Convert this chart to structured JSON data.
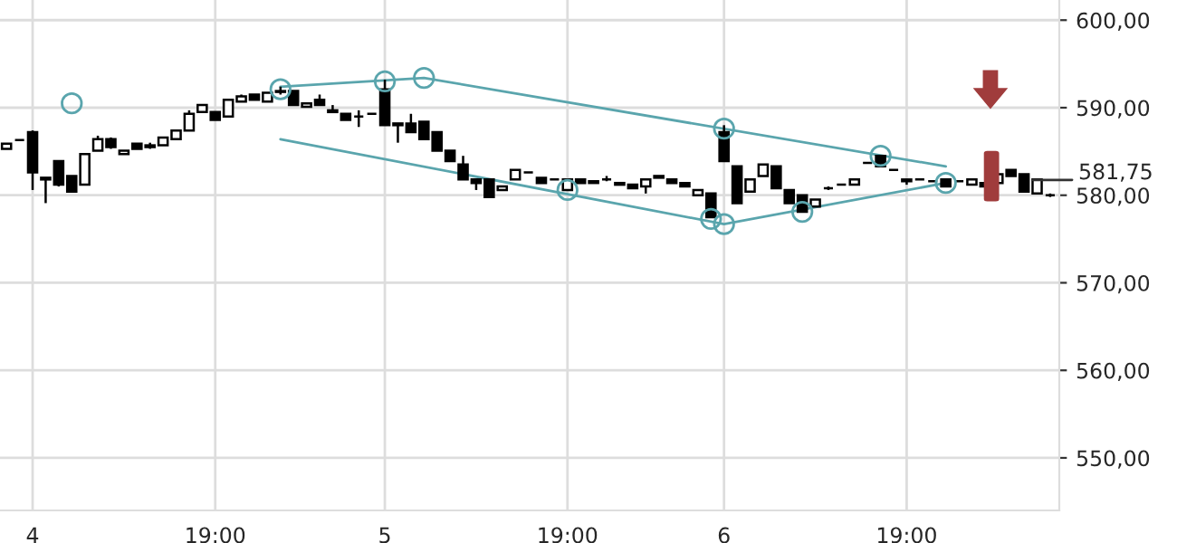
{
  "chart_data": {
    "type": "candlestick",
    "categories": [
      null,
      null,
      "4",
      null,
      null,
      null,
      null,
      null,
      null,
      null,
      null,
      null,
      null,
      null,
      null,
      null,
      "19:00",
      null,
      null,
      null,
      null,
      null,
      null,
      null,
      null,
      null,
      null,
      null,
      null,
      "5",
      null,
      null,
      null,
      null,
      null,
      null,
      null,
      null,
      null,
      null,
      null,
      null,
      null,
      "19:00",
      null,
      null,
      null,
      null,
      null,
      null,
      null,
      null,
      null,
      null,
      null,
      "6",
      null,
      null,
      null,
      null,
      null,
      null,
      null,
      null,
      null,
      null,
      null,
      null,
      null,
      "19:00",
      null,
      null,
      null,
      null,
      null,
      null,
      null,
      null,
      null,
      null,
      null
    ],
    "ohlc": [
      [
        585.3,
        585.9,
        585.3,
        585.9
      ],
      [
        586.3,
        586.3,
        586.3,
        586.3
      ],
      [
        587.2,
        587.4,
        580.6,
        582.6
      ],
      [
        582.0,
        582.0,
        579.1,
        581.8
      ],
      [
        583.9,
        584.0,
        581.0,
        581.2
      ],
      [
        582.2,
        582.2,
        580.4,
        580.4
      ],
      [
        581.2,
        584.7,
        581.2,
        584.7
      ],
      [
        585.1,
        586.8,
        585.1,
        586.4
      ],
      [
        586.4,
        586.6,
        585.3,
        585.5
      ],
      [
        584.7,
        585.1,
        584.7,
        585.1
      ],
      [
        585.9,
        585.9,
        585.3,
        585.3
      ],
      [
        585.7,
        586.0,
        585.3,
        585.5
      ],
      [
        585.7,
        586.6,
        585.7,
        586.6
      ],
      [
        586.4,
        587.4,
        586.4,
        587.4
      ],
      [
        587.4,
        589.7,
        587.4,
        589.3
      ],
      [
        589.5,
        590.3,
        589.5,
        590.3
      ],
      [
        589.5,
        589.5,
        588.6,
        588.6
      ],
      [
        589.0,
        590.9,
        589.0,
        590.9
      ],
      [
        590.7,
        591.5,
        590.7,
        591.3
      ],
      [
        591.5,
        591.5,
        590.9,
        590.9
      ],
      [
        590.7,
        591.7,
        590.7,
        591.7
      ],
      [
        591.9,
        592.4,
        591.5,
        591.8
      ],
      [
        591.9,
        591.9,
        590.3,
        590.3
      ],
      [
        590.1,
        590.5,
        590.1,
        590.5
      ],
      [
        590.9,
        591.5,
        590.3,
        590.3
      ],
      [
        589.7,
        590.3,
        589.5,
        589.5
      ],
      [
        589.3,
        589.3,
        588.6,
        588.6
      ],
      [
        589.0,
        589.7,
        587.8,
        589.0
      ],
      [
        589.3,
        589.3,
        589.3,
        589.3
      ],
      [
        592.1,
        593.2,
        588.0,
        588.0
      ],
      [
        588.2,
        588.2,
        586.0,
        588.0
      ],
      [
        588.2,
        589.3,
        587.2,
        587.2
      ],
      [
        588.4,
        588.4,
        586.4,
        586.4
      ],
      [
        587.2,
        587.2,
        585.1,
        585.1
      ],
      [
        585.1,
        585.1,
        583.9,
        583.9
      ],
      [
        583.5,
        584.5,
        581.8,
        581.8
      ],
      [
        581.8,
        581.8,
        580.6,
        581.4
      ],
      [
        581.8,
        581.8,
        579.8,
        579.8
      ],
      [
        580.6,
        581.0,
        580.6,
        581.0
      ],
      [
        581.8,
        582.9,
        581.8,
        582.9
      ],
      [
        582.6,
        582.6,
        582.6,
        582.6
      ],
      [
        582.0,
        582.0,
        581.4,
        581.4
      ],
      [
        581.8,
        581.8,
        581.8,
        581.8
      ],
      [
        580.6,
        581.8,
        580.6,
        581.8
      ],
      [
        581.8,
        581.8,
        581.4,
        581.4
      ],
      [
        581.6,
        581.6,
        581.4,
        581.4
      ],
      [
        581.8,
        582.2,
        581.6,
        581.8
      ],
      [
        581.4,
        581.4,
        581.2,
        581.2
      ],
      [
        581.2,
        581.2,
        580.8,
        580.8
      ],
      [
        581.0,
        581.8,
        580.2,
        581.8
      ],
      [
        582.0,
        582.2,
        582.0,
        582.2
      ],
      [
        581.8,
        581.8,
        581.4,
        581.4
      ],
      [
        581.4,
        581.4,
        581.0,
        581.0
      ],
      [
        580.0,
        580.6,
        580.0,
        580.6
      ],
      [
        580.2,
        580.2,
        577.5,
        577.5
      ],
      [
        587.2,
        588.0,
        583.9,
        583.9
      ],
      [
        583.3,
        583.3,
        579.1,
        579.1
      ],
      [
        580.4,
        581.8,
        580.4,
        581.8
      ],
      [
        582.2,
        583.5,
        582.2,
        583.5
      ],
      [
        583.3,
        583.3,
        580.8,
        580.8
      ],
      [
        580.6,
        580.6,
        579.1,
        579.1
      ],
      [
        580.0,
        580.0,
        578.1,
        578.1
      ],
      [
        578.7,
        579.5,
        578.7,
        579.5
      ],
      [
        580.8,
        581.0,
        580.6,
        580.8
      ],
      [
        581.2,
        581.2,
        581.2,
        581.2
      ],
      [
        581.2,
        581.8,
        581.2,
        581.8
      ],
      [
        583.7,
        583.7,
        583.7,
        583.7
      ],
      [
        584.5,
        584.5,
        583.3,
        583.3
      ],
      [
        582.9,
        582.9,
        582.9,
        582.9
      ],
      [
        581.8,
        581.8,
        581.2,
        581.6
      ],
      [
        581.8,
        581.8,
        581.8,
        581.8
      ],
      [
        581.6,
        581.6,
        581.6,
        581.6
      ],
      [
        581.8,
        581.8,
        581.0,
        581.0
      ],
      [
        581.6,
        581.6,
        581.6,
        581.6
      ],
      [
        581.2,
        581.8,
        581.2,
        581.8
      ],
      [
        581.4,
        581.4,
        581.0,
        581.0
      ],
      [
        581.4,
        582.4,
        581.4,
        582.4
      ],
      [
        582.9,
        582.9,
        582.2,
        582.2
      ],
      [
        582.4,
        582.4,
        580.4,
        580.4
      ],
      [
        580.2,
        581.8,
        580.2,
        581.8
      ],
      [
        580.0,
        580.2,
        579.8,
        580.0
      ]
    ],
    "color": "#000000",
    "series": [
      {
        "type": "line",
        "color": "#5aa5ad",
        "values": [
          null,
          null,
          null,
          null,
          null,
          null,
          null,
          null,
          null,
          null,
          null,
          null,
          null,
          null,
          null,
          null,
          null,
          null,
          null,
          null,
          null,
          592.4,
          null,
          null,
          null,
          null,
          null,
          null,
          null,
          null,
          null,
          null,
          593.4,
          null,
          null,
          null,
          null,
          null,
          null,
          null,
          null,
          null,
          null,
          null,
          null,
          null,
          null,
          null,
          null,
          null,
          null,
          null,
          null,
          null,
          null,
          null,
          null,
          null,
          null,
          null,
          null,
          null,
          null,
          null,
          null,
          null,
          null,
          null,
          null,
          null,
          null,
          null,
          583.3,
          null,
          null,
          null,
          null,
          null,
          null,
          null,
          null
        ]
      },
      {
        "type": "line",
        "color": "#5aa5ad",
        "values": [
          null,
          null,
          null,
          null,
          null,
          null,
          null,
          null,
          null,
          null,
          null,
          null,
          null,
          null,
          null,
          null,
          null,
          null,
          null,
          null,
          null,
          586.4,
          null,
          null,
          null,
          null,
          null,
          null,
          null,
          null,
          null,
          null,
          null,
          null,
          null,
          null,
          null,
          null,
          null,
          null,
          null,
          null,
          null,
          null,
          null,
          null,
          null,
          null,
          null,
          null,
          null,
          null,
          null,
          null,
          null,
          576.7,
          null,
          null,
          null,
          null,
          null,
          null,
          null,
          null,
          null,
          null,
          null,
          null,
          null,
          null,
          null,
          null,
          581.4,
          null,
          null,
          null,
          null,
          null,
          null,
          null,
          null
        ]
      },
      {
        "type": "scatter",
        "color": "#5aa5ad",
        "marker": "circle",
        "values": [
          null,
          null,
          null,
          null,
          null,
          590.5,
          null,
          null,
          null,
          null,
          null,
          null,
          null,
          null,
          null,
          null,
          null,
          null,
          null,
          null,
          null,
          592.1,
          null,
          null,
          null,
          null,
          null,
          null,
          null,
          593.0,
          null,
          null,
          593.4,
          null,
          null,
          null,
          null,
          null,
          null,
          null,
          null,
          null,
          null,
          null,
          null,
          null,
          null,
          null,
          null,
          null,
          null,
          null,
          null,
          null,
          null,
          587.6,
          null,
          null,
          null,
          null,
          null,
          null,
          null,
          null,
          null,
          null,
          null,
          584.5,
          null,
          null,
          null,
          null,
          null,
          null,
          null,
          null,
          null,
          null,
          null,
          null,
          null
        ]
      },
      {
        "type": "scatter",
        "color": "#5aa5ad",
        "marker": "circle",
        "values": [
          null,
          null,
          null,
          null,
          null,
          null,
          null,
          null,
          null,
          null,
          null,
          null,
          null,
          null,
          null,
          null,
          null,
          null,
          null,
          null,
          null,
          null,
          null,
          null,
          null,
          null,
          null,
          null,
          null,
          null,
          null,
          null,
          null,
          null,
          null,
          null,
          null,
          null,
          null,
          null,
          null,
          null,
          null,
          580.6,
          null,
          null,
          null,
          null,
          null,
          null,
          null,
          null,
          null,
          null,
          577.3,
          576.7,
          null,
          null,
          null,
          null,
          null,
          578.1,
          null,
          null,
          null,
          null,
          null,
          null,
          null,
          null,
          null,
          null,
          581.4,
          null,
          null,
          null,
          null,
          null,
          null,
          null,
          null
        ]
      }
    ],
    "ylim": [
      544,
      602.3
    ],
    "yticks": [
      {
        "value": 550,
        "label": "550,00"
      },
      {
        "value": 560,
        "label": "560,00"
      },
      {
        "value": 570,
        "label": "570,00"
      },
      {
        "value": 580,
        "label": "580,00"
      },
      {
        "value": 590,
        "label": "590,00"
      },
      {
        "value": 600,
        "label": "600,00"
      }
    ],
    "ref_lines": [
      {
        "axis": "y",
        "value": 581.75,
        "label": "581,75"
      }
    ],
    "grid": true,
    "legend": false
  }
}
